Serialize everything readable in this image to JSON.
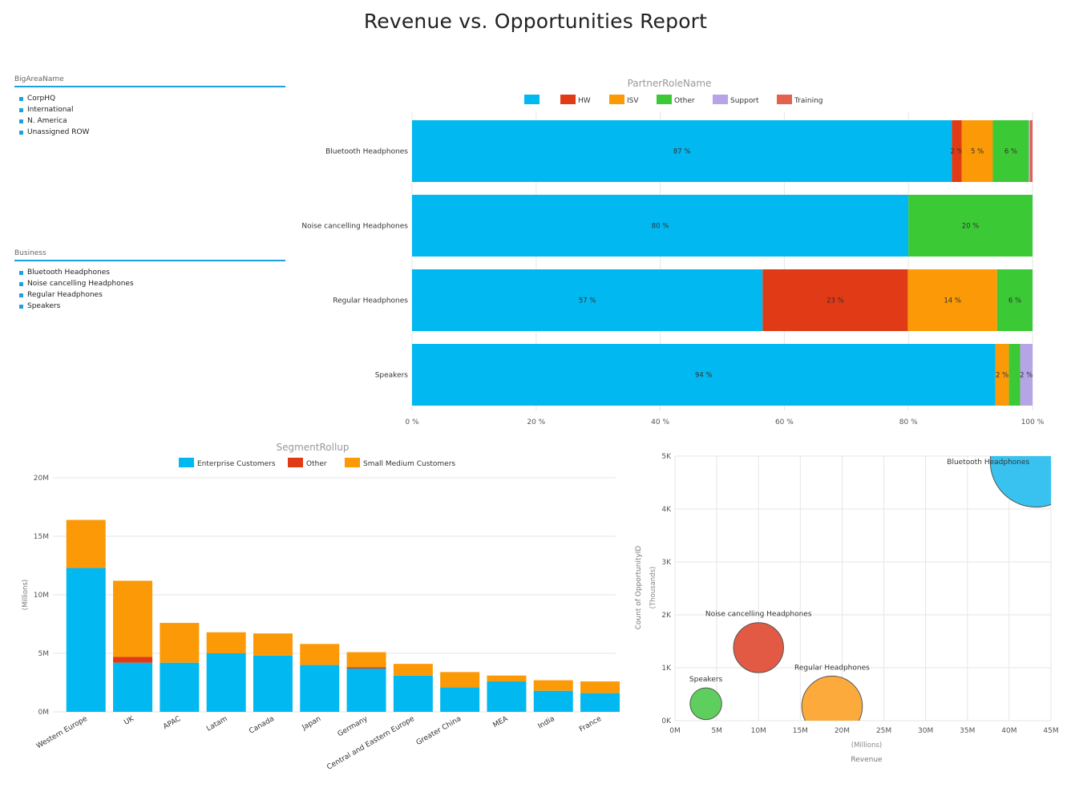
{
  "report_title": "Revenue vs. Opportunities Report",
  "slicers": [
    {
      "header": "BigAreaName",
      "items": [
        "CorpHQ",
        "International",
        "N. America",
        "Unassigned ROW"
      ]
    },
    {
      "header": "Business",
      "items": [
        "Bluetooth Headphones",
        "Noise cancelling Headphones",
        "Regular Headphones",
        "Speakers"
      ]
    }
  ],
  "colors": {
    "blue": "#01b8f0",
    "red": "#e03a16",
    "orange": "#fb9a06",
    "green": "#3cc936",
    "purple": "#b5a4e6",
    "salmon": "#e2614f",
    "grid": "#e6e6e6",
    "axis_text": "#555555"
  },
  "chart_data": [
    {
      "type": "bar",
      "orientation": "horizontal",
      "stacked": "percent",
      "title": "PartnerRoleName",
      "categories": [
        "Bluetooth Headphones",
        "Noise cancelling Headphones",
        "Regular Headphones",
        "Speakers"
      ],
      "series": [
        {
          "name": "",
          "color": "#01b8f0",
          "values": [
            87,
            80,
            56.5,
            94
          ],
          "labels": [
            "87 %",
            "80 %",
            "57 %",
            "94 %"
          ]
        },
        {
          "name": "HW",
          "color": "#e03a16",
          "values": [
            1.6,
            0,
            23.4,
            0
          ],
          "labels": [
            "2 %",
            "",
            "23 %",
            ""
          ]
        },
        {
          "name": "ISV",
          "color": "#fb9a06",
          "values": [
            5,
            0,
            14.4,
            2.2
          ],
          "labels": [
            "5 %",
            "",
            "14 %",
            "2 %"
          ]
        },
        {
          "name": "Other",
          "color": "#3cc936",
          "values": [
            5.8,
            20,
            5.7,
            1.8
          ],
          "labels": [
            "6 %",
            "20 %",
            "6 %",
            ""
          ]
        },
        {
          "name": "Support",
          "color": "#b5a4e6",
          "values": [
            0.2,
            0,
            0,
            2.0
          ],
          "labels": [
            "",
            "",
            "",
            "2 %"
          ]
        },
        {
          "name": "Training",
          "color": "#e2614f",
          "values": [
            0.4,
            0,
            0,
            0
          ],
          "labels": [
            "",
            "",
            "",
            ""
          ]
        }
      ],
      "xticks": [
        "0 %",
        "20 %",
        "40 %",
        "60 %",
        "80 %",
        "100 %"
      ],
      "xlim": [
        0,
        100
      ],
      "legend_position": "top-center"
    },
    {
      "type": "bar",
      "orientation": "vertical",
      "stacked": true,
      "title": "SegmentRollup",
      "categories": [
        "Western Europe",
        "UK",
        "APAC",
        "Latam",
        "Canada",
        "Japan",
        "Germany",
        "Central and Eastern Europe",
        "Greater China",
        "MEA",
        "India",
        "France"
      ],
      "series": [
        {
          "name": "Enterprise Customers",
          "color": "#01b8f0",
          "values": [
            12.3,
            4.2,
            4.2,
            5.0,
            4.8,
            4.0,
            3.7,
            3.1,
            2.1,
            2.6,
            1.8,
            1.6
          ]
        },
        {
          "name": "Other",
          "color": "#e03a16",
          "values": [
            0,
            0.5,
            0,
            0,
            0,
            0,
            0.1,
            0,
            0,
            0,
            0,
            0
          ]
        },
        {
          "name": "Small Medium Customers",
          "color": "#fb9a06",
          "values": [
            4.1,
            6.5,
            3.4,
            1.8,
            1.9,
            1.8,
            1.3,
            1.0,
            1.3,
            0.5,
            0.9,
            1.0
          ]
        }
      ],
      "ylabel": "(Millions)",
      "yticks": [
        "0M",
        "5M",
        "10M",
        "15M",
        "20M"
      ],
      "ylim": [
        0,
        20
      ],
      "legend_position": "top-center"
    },
    {
      "type": "scatter",
      "bubble": true,
      "xlabel": "Revenue",
      "xsublabel": "(Millions)",
      "ylabel": "Count of OpportunityID",
      "ysublabel": "(Thousands)",
      "xticks": [
        "0M",
        "5M",
        "10M",
        "15M",
        "20M",
        "25M",
        "30M",
        "35M",
        "40M",
        "45M"
      ],
      "yticks": [
        "0K",
        "1K",
        "2K",
        "3K",
        "4K",
        "5K"
      ],
      "xlim": [
        0,
        45
      ],
      "ylim": [
        0,
        5
      ],
      "points": [
        {
          "label": "Bluetooth Headphones",
          "x": 43.2,
          "y": 4.9,
          "size": 5.0,
          "color": "#2ebfee"
        },
        {
          "label": "Noise cancelling Headphones",
          "x": 10.0,
          "y": 1.38,
          "size": 1.5,
          "color": "#e0513a"
        },
        {
          "label": "Regular Headphones",
          "x": 18.8,
          "y": 0.27,
          "size": 2.2,
          "color": "#fda532"
        },
        {
          "label": "Speakers",
          "x": 3.7,
          "y": 0.32,
          "size": 0.6,
          "color": "#55cc55"
        }
      ]
    }
  ]
}
